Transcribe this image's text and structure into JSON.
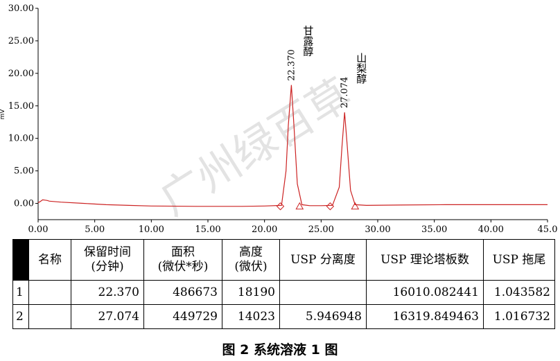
{
  "chart_data": {
    "type": "line",
    "ylabel": "mV",
    "xlim": [
      0,
      45
    ],
    "ylim": [
      -2.5,
      30
    ],
    "x_ticks": [
      "0.00",
      "5.00",
      "10.00",
      "15.00",
      "20.00",
      "25.00",
      "30.00",
      "35.00",
      "40.00",
      "45.0"
    ],
    "y_ticks": [
      "30.00",
      "25.00",
      "20.00",
      "15.00",
      "10.00",
      "5.00",
      "0.00"
    ],
    "grid": false,
    "line_color": "#cc2222",
    "series": [
      {
        "x": [
          0.0,
          0.2,
          0.4,
          0.6,
          0.8,
          1.0,
          2.0,
          4.0,
          6.0,
          8.0,
          10.0,
          14.0,
          18.0,
          20.0,
          21.5,
          21.9,
          22.1,
          22.37,
          22.6,
          22.9,
          23.3,
          24.0,
          25.0,
          26.0,
          26.6,
          26.85,
          27.074,
          27.3,
          27.6,
          28.0,
          29.0,
          32.0,
          36.0,
          40.0,
          45.0
        ],
        "y": [
          0.1,
          0.3,
          0.55,
          0.5,
          0.45,
          0.35,
          0.2,
          0.0,
          -0.2,
          -0.3,
          -0.4,
          -0.45,
          -0.45,
          -0.4,
          -0.3,
          5.0,
          12.0,
          18.2,
          12.0,
          3.0,
          -0.2,
          -0.35,
          -0.35,
          -0.3,
          2.5,
          9.0,
          14.0,
          9.0,
          2.0,
          -0.2,
          -0.3,
          -0.25,
          -0.2,
          -0.2,
          -0.2
        ]
      }
    ],
    "peaks": [
      {
        "rt": 27.074,
        "rt_label": "27.074",
        "name": "山梨醇",
        "height": 14.0
      },
      {
        "rt": 22.37,
        "rt_label": "22.370",
        "name": "甘露醇",
        "height": 18.2
      }
    ],
    "markers": [
      {
        "shape": "diamond",
        "x": 21.4
      },
      {
        "shape": "triangle",
        "x": 23.1
      },
      {
        "shape": "diamond",
        "x": 25.8
      },
      {
        "shape": "triangle",
        "x": 28.0
      }
    ],
    "watermark": "广州绿百草"
  },
  "table": {
    "headers": [
      [
        "名称"
      ],
      [
        "保留时间",
        "(分钟)"
      ],
      [
        "面积",
        "(微伏*秒)"
      ],
      [
        "高度",
        "(微伏)"
      ],
      [
        "USP 分离度"
      ],
      [
        "USP 理论塔板数"
      ],
      [
        "USP 拖尾"
      ]
    ],
    "rows": [
      {
        "idx": "1",
        "name": "",
        "rt": "22.370",
        "area": "486673",
        "height": "18190",
        "resolution": "",
        "plates": "16010.082441",
        "tailing": "1.043582"
      },
      {
        "idx": "2",
        "name": "",
        "rt": "27.074",
        "area": "449729",
        "height": "14023",
        "resolution": "5.946948",
        "plates": "16319.849463",
        "tailing": "1.016732"
      }
    ]
  },
  "caption": "图 2  系统溶液 1 图"
}
